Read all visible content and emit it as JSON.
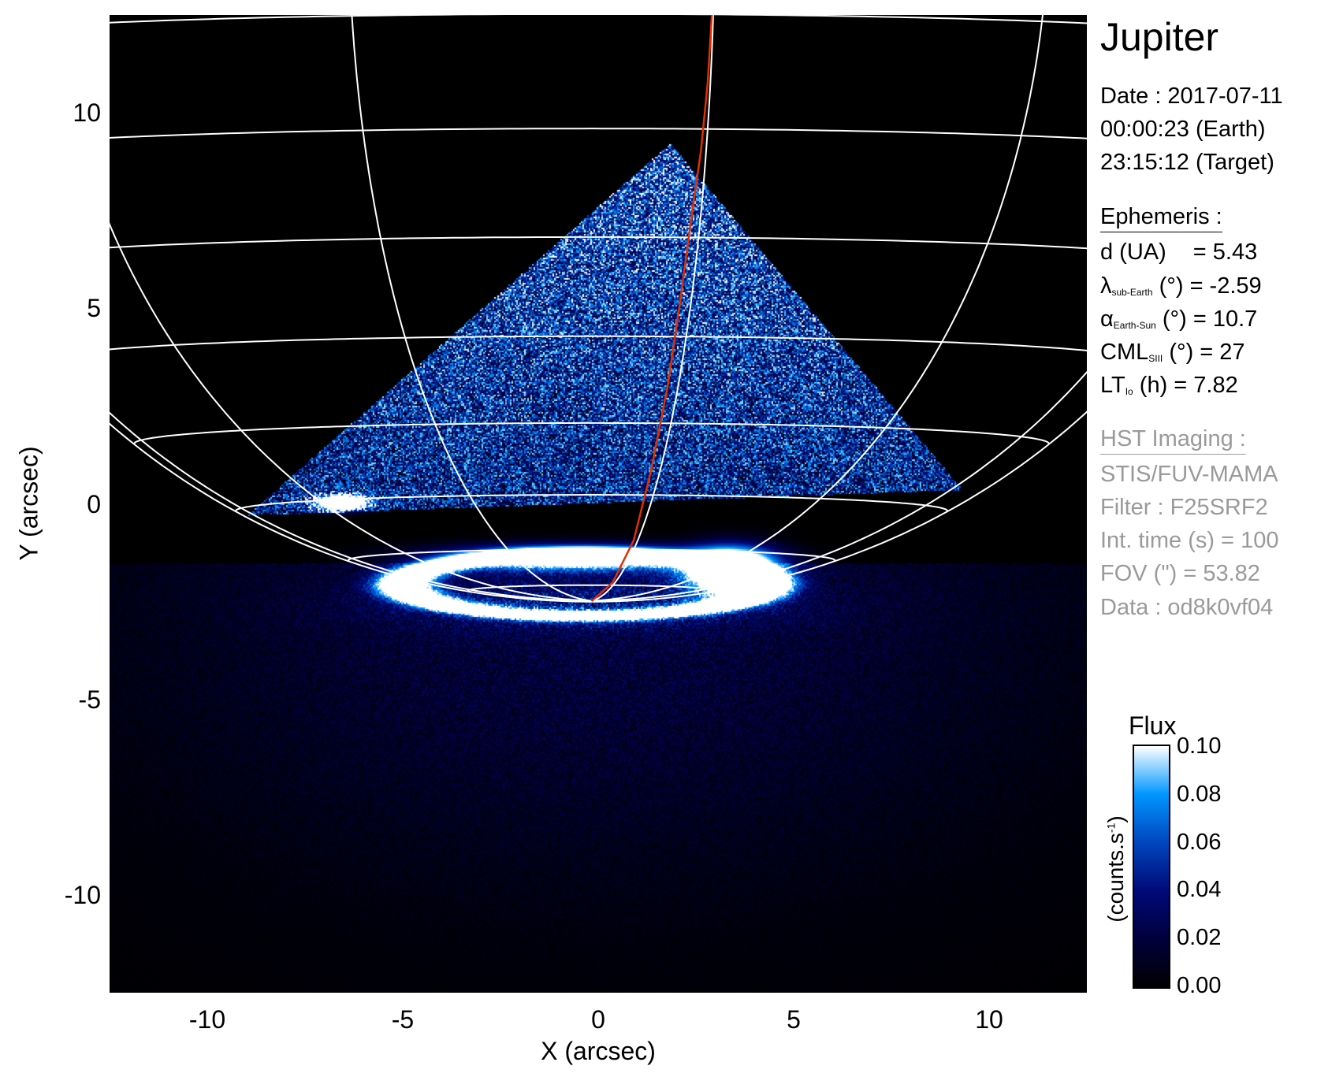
{
  "chart_data": {
    "type": "heatmap",
    "xlabel": "X (arcsec)",
    "ylabel": "Y (arcsec)",
    "xlim": [
      -12.5,
      12.5
    ],
    "ylim": [
      -12.5,
      12.5
    ],
    "xticks": [
      "-10",
      "-5",
      "0",
      "5",
      "10"
    ],
    "xtick_values": [
      -10,
      -5,
      0,
      5,
      10
    ],
    "yticks": [
      "10",
      "5",
      "0",
      "-5",
      "-10"
    ],
    "ytick_values": [
      10,
      5,
      0,
      -5,
      -10
    ],
    "grid": "planetographic latitude/longitude grid (white)",
    "grid_color": "#ffffff",
    "footprint_color": "#e03000",
    "footprint_curve": [
      [
        -0.17,
        -2.49
      ],
      [
        0.37,
        -2.01
      ],
      [
        0.91,
        -0.93
      ],
      [
        1.34,
        0.8
      ],
      [
        1.77,
        2.97
      ],
      [
        2.09,
        5.13
      ],
      [
        2.41,
        7.51
      ],
      [
        2.63,
        9.03
      ],
      [
        2.8,
        10.76
      ],
      [
        2.91,
        12.53
      ]
    ],
    "colorbar": {
      "title": "Flux",
      "label": "(counts.s",
      "label_sup": "-1",
      "label_end": ")",
      "range": [
        0.0,
        0.1
      ],
      "ticks": [
        "0.10",
        "0.08",
        "0.06",
        "0.04",
        "0.02",
        "0.00"
      ],
      "tick_values": [
        0.1,
        0.08,
        0.06,
        0.04,
        0.02,
        0.0
      ],
      "colormap": [
        [
          0.0,
          "#000000"
        ],
        [
          0.02,
          "#00003c"
        ],
        [
          0.04,
          "#000a78"
        ],
        [
          0.06,
          "#0046be"
        ],
        [
          0.08,
          "#0096ff"
        ],
        [
          0.1,
          "#ffffff"
        ]
      ]
    }
  },
  "info": {
    "title": "Jupiter",
    "date": "Date : 2017-07-11",
    "time_earth": "00:00:23 (Earth)",
    "time_target": "23:15:12 (Target)",
    "ephemeris_header": "Ephemeris :",
    "d_label": "d (UA)",
    "d_value": "= 5.43",
    "lambda_sym": "λ",
    "lambda_sub": "sub-Earth",
    "lambda_value": "(°) = -2.59",
    "alpha_sym": "α",
    "alpha_sub": "Earth-Sun",
    "alpha_value": "(°) = 10.7",
    "cml_sym": "CML",
    "cml_sub": "SIII",
    "cml_value": "(°) = 27",
    "lt_sym": "LT",
    "lt_sub": "Io",
    "lt_value": "(h) = 7.82",
    "hst_header": "HST Imaging :",
    "instrument": "STIS/FUV-MAMA",
    "filter": "Filter : F25SRF2",
    "int_time": "Int. time (s) = 100",
    "fov": "FOV (\") = 53.82",
    "dataset": "Data : od8k0vf04"
  }
}
